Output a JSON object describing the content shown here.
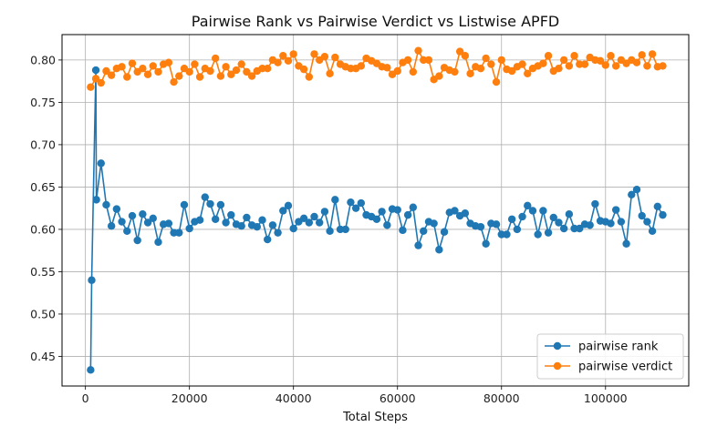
{
  "chart_data": {
    "type": "line",
    "title": "Pairwise Rank vs Pairwise Verdict vs Listwise APFD",
    "xlabel": "Total Steps",
    "ylabel": "",
    "xlim": [
      -4500,
      116000
    ],
    "ylim": [
      0.415,
      0.83
    ],
    "x_ticks": [
      0,
      20000,
      40000,
      60000,
      80000,
      100000
    ],
    "x_tick_labels": [
      "0",
      "20000",
      "40000",
      "60000",
      "80000",
      "100000"
    ],
    "y_ticks": [
      0.45,
      0.5,
      0.55,
      0.6,
      0.65,
      0.7,
      0.75,
      0.8
    ],
    "y_tick_labels": [
      "0.45",
      "0.50",
      "0.55",
      "0.60",
      "0.65",
      "0.70",
      "0.75",
      "0.80"
    ],
    "grid": true,
    "legend_position": "bottom-right",
    "series": [
      {
        "name": "pairwise rank",
        "color": "#1f77b4",
        "x": [
          1000,
          1200,
          2000,
          2100,
          3000,
          4000,
          5000,
          6000,
          7000,
          8000,
          9000,
          10000,
          11000,
          12000,
          13000,
          14000,
          15000,
          16000,
          17000,
          18000,
          19000,
          20000,
          21000,
          22000,
          23000,
          24000,
          25000,
          26000,
          27000,
          28000,
          29000,
          30000,
          31000,
          32000,
          33000,
          34000,
          35000,
          36000,
          37000,
          38000,
          39000,
          40000,
          41000,
          42000,
          43000,
          44000,
          45000,
          46000,
          47000,
          48000,
          49000,
          50000,
          51000,
          52000,
          53000,
          54000,
          55000,
          56000,
          57000,
          58000,
          59000,
          60000,
          61000,
          62000,
          63000,
          64000,
          65000,
          66000,
          67000,
          68000,
          69000,
          70000,
          71000,
          72000,
          73000,
          74000,
          75000,
          76000,
          77000,
          78000,
          79000,
          80000,
          81000,
          82000,
          83000,
          84000,
          85000,
          86000,
          87000,
          88000,
          89000,
          90000,
          91000,
          92000,
          93000,
          94000,
          95000,
          96000,
          97000,
          98000,
          99000,
          100000,
          101000,
          102000,
          103000,
          104000,
          105000,
          106000,
          107000,
          108000,
          109000,
          110000,
          111000
        ],
        "values": [
          0.434,
          0.54,
          0.788,
          0.635,
          0.678,
          0.629,
          0.604,
          0.624,
          0.609,
          0.598,
          0.616,
          0.587,
          0.618,
          0.608,
          0.613,
          0.585,
          0.606,
          0.607,
          0.596,
          0.596,
          0.629,
          0.601,
          0.609,
          0.611,
          0.638,
          0.63,
          0.612,
          0.629,
          0.608,
          0.617,
          0.606,
          0.604,
          0.614,
          0.605,
          0.603,
          0.611,
          0.588,
          0.605,
          0.596,
          0.622,
          0.628,
          0.601,
          0.609,
          0.613,
          0.608,
          0.615,
          0.608,
          0.621,
          0.598,
          0.635,
          0.6,
          0.6,
          0.632,
          0.625,
          0.631,
          0.617,
          0.615,
          0.612,
          0.621,
          0.605,
          0.624,
          0.623,
          0.599,
          0.617,
          0.626,
          0.581,
          0.598,
          0.609,
          0.607,
          0.576,
          0.597,
          0.62,
          0.622,
          0.616,
          0.619,
          0.607,
          0.604,
          0.603,
          0.583,
          0.607,
          0.606,
          0.594,
          0.594,
          0.612,
          0.6,
          0.615,
          0.628,
          0.622,
          0.594,
          0.622,
          0.596,
          0.614,
          0.608,
          0.601,
          0.618,
          0.601,
          0.601,
          0.606,
          0.605,
          0.63,
          0.61,
          0.609,
          0.607,
          0.623,
          0.609,
          0.583,
          0.641,
          0.647,
          0.616,
          0.609,
          0.598,
          0.627,
          0.617
        ]
      },
      {
        "name": "pairwise verdict",
        "color": "#ff7f0e",
        "x": [
          1000,
          2000,
          3000,
          4000,
          5000,
          6000,
          7000,
          8000,
          9000,
          10000,
          11000,
          12000,
          13000,
          14000,
          15000,
          16000,
          17000,
          18000,
          19000,
          20000,
          21000,
          22000,
          23000,
          24000,
          25000,
          26000,
          27000,
          28000,
          29000,
          30000,
          31000,
          32000,
          33000,
          34000,
          35000,
          36000,
          37000,
          38000,
          39000,
          40000,
          41000,
          42000,
          43000,
          44000,
          45000,
          46000,
          47000,
          48000,
          49000,
          50000,
          51000,
          52000,
          53000,
          54000,
          55000,
          56000,
          57000,
          58000,
          59000,
          60000,
          61000,
          62000,
          63000,
          64000,
          65000,
          66000,
          67000,
          68000,
          69000,
          70000,
          71000,
          72000,
          73000,
          74000,
          75000,
          76000,
          77000,
          78000,
          79000,
          80000,
          81000,
          82000,
          83000,
          84000,
          85000,
          86000,
          87000,
          88000,
          89000,
          90000,
          91000,
          92000,
          93000,
          94000,
          95000,
          96000,
          97000,
          98000,
          99000,
          100000,
          101000,
          102000,
          103000,
          104000,
          105000,
          106000,
          107000,
          108000,
          109000,
          110000,
          111000
        ],
        "values": [
          0.768,
          0.778,
          0.773,
          0.787,
          0.782,
          0.79,
          0.792,
          0.78,
          0.796,
          0.786,
          0.79,
          0.783,
          0.793,
          0.786,
          0.795,
          0.797,
          0.774,
          0.781,
          0.79,
          0.786,
          0.795,
          0.78,
          0.79,
          0.787,
          0.802,
          0.781,
          0.792,
          0.783,
          0.788,
          0.795,
          0.786,
          0.781,
          0.787,
          0.79,
          0.79,
          0.8,
          0.797,
          0.805,
          0.799,
          0.807,
          0.793,
          0.789,
          0.78,
          0.807,
          0.8,
          0.804,
          0.784,
          0.803,
          0.795,
          0.792,
          0.79,
          0.79,
          0.793,
          0.802,
          0.799,
          0.796,
          0.792,
          0.791,
          0.783,
          0.787,
          0.797,
          0.8,
          0.786,
          0.811,
          0.8,
          0.8,
          0.777,
          0.781,
          0.791,
          0.788,
          0.786,
          0.81,
          0.805,
          0.784,
          0.792,
          0.79,
          0.802,
          0.795,
          0.774,
          0.8,
          0.789,
          0.787,
          0.792,
          0.795,
          0.784,
          0.79,
          0.793,
          0.796,
          0.805,
          0.787,
          0.79,
          0.8,
          0.793,
          0.805,
          0.795,
          0.795,
          0.803,
          0.8,
          0.799,
          0.794,
          0.805,
          0.793,
          0.8,
          0.796,
          0.8,
          0.797,
          0.806,
          0.793,
          0.807,
          0.792,
          0.793
        ]
      }
    ]
  }
}
